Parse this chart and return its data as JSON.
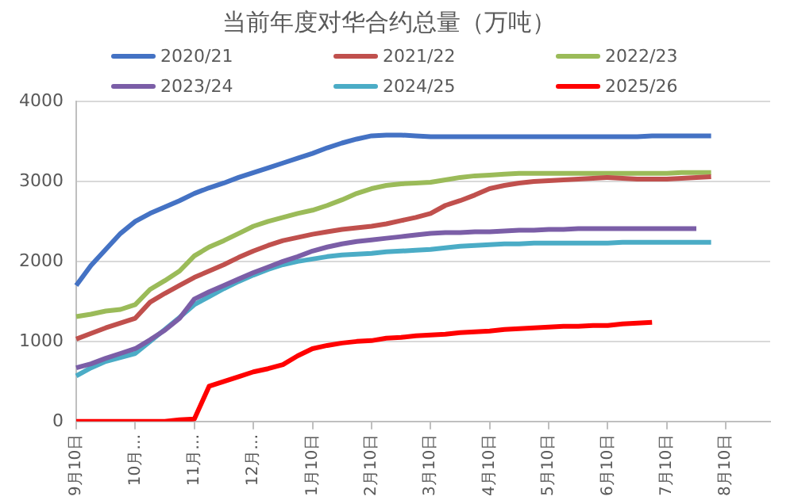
{
  "chart_data": {
    "type": "line",
    "title": "当前年度对华合约总量（万吨）",
    "categories": [
      "9月10日",
      null,
      null,
      null,
      "10月…",
      null,
      null,
      null,
      "11月…",
      null,
      null,
      null,
      "12月…",
      null,
      null,
      null,
      "1月10日",
      null,
      null,
      null,
      "2月10日",
      null,
      null,
      null,
      "3月10日",
      null,
      null,
      null,
      "4月10日",
      null,
      null,
      null,
      "5月10日",
      null,
      null,
      null,
      "6月10日",
      null,
      null,
      null,
      "7月10日",
      null,
      null,
      null,
      "8月10日",
      null,
      null,
      null
    ],
    "series": [
      {
        "name": "2020/21",
        "color": "#4472c4",
        "values": [
          1700,
          1950,
          2150,
          2350,
          2500,
          2600,
          2680,
          2760,
          2850,
          2920,
          2980,
          3050,
          3110,
          3170,
          3230,
          3290,
          3350,
          3420,
          3480,
          3530,
          3570,
          3580,
          3580,
          3570,
          3560,
          3560,
          3560,
          3560,
          3560,
          3560,
          3560,
          3560,
          3560,
          3560,
          3560,
          3560,
          3560,
          3560,
          3560,
          3570,
          3570,
          3570,
          3570,
          3570,
          null,
          null,
          null,
          null
        ]
      },
      {
        "name": "2021/22",
        "color": "#c0504d",
        "values": [
          1030,
          1100,
          1170,
          1230,
          1290,
          1490,
          1600,
          1700,
          1800,
          1880,
          1960,
          2050,
          2130,
          2200,
          2260,
          2300,
          2340,
          2370,
          2400,
          2420,
          2440,
          2470,
          2510,
          2550,
          2600,
          2700,
          2760,
          2830,
          2910,
          2950,
          2980,
          3000,
          3010,
          3020,
          3030,
          3040,
          3050,
          3040,
          3030,
          3030,
          3030,
          3040,
          3050,
          3060,
          null,
          null,
          null,
          null
        ]
      },
      {
        "name": "2022/23",
        "color": "#9bbb59",
        "values": [
          1310,
          1340,
          1380,
          1400,
          1460,
          1650,
          1760,
          1880,
          2070,
          2180,
          2260,
          2350,
          2440,
          2500,
          2550,
          2600,
          2640,
          2700,
          2770,
          2850,
          2910,
          2950,
          2970,
          2980,
          2990,
          3020,
          3050,
          3070,
          3080,
          3090,
          3100,
          3100,
          3100,
          3100,
          3100,
          3100,
          3100,
          3100,
          3100,
          3100,
          3100,
          3110,
          3110,
          3110,
          null,
          null,
          null,
          null
        ]
      },
      {
        "name": "2023/24",
        "color": "#7b5ea7",
        "values": [
          670,
          720,
          790,
          850,
          910,
          1020,
          1140,
          1290,
          1530,
          1620,
          1700,
          1780,
          1860,
          1930,
          2000,
          2060,
          2130,
          2180,
          2220,
          2250,
          2270,
          2290,
          2310,
          2330,
          2350,
          2360,
          2360,
          2370,
          2370,
          2380,
          2390,
          2390,
          2400,
          2400,
          2410,
          2410,
          2410,
          2410,
          2410,
          2410,
          2410,
          2410,
          2410,
          null,
          null,
          null,
          null,
          null
        ]
      },
      {
        "name": "2024/25",
        "color": "#4bacc6",
        "values": [
          570,
          670,
          750,
          800,
          850,
          1000,
          1150,
          1300,
          1460,
          1560,
          1660,
          1750,
          1830,
          1900,
          1960,
          2000,
          2030,
          2060,
          2080,
          2090,
          2100,
          2120,
          2130,
          2140,
          2150,
          2170,
          2190,
          2200,
          2210,
          2220,
          2220,
          2230,
          2230,
          2230,
          2230,
          2230,
          2230,
          2240,
          2240,
          2240,
          2240,
          2240,
          2240,
          2240,
          null,
          null,
          null,
          null
        ]
      },
      {
        "name": "2025/26",
        "color": "#ff0000",
        "values": [
          0,
          0,
          0,
          0,
          0,
          0,
          0,
          20,
          30,
          440,
          500,
          560,
          620,
          660,
          710,
          820,
          910,
          950,
          980,
          1000,
          1010,
          1040,
          1050,
          1070,
          1080,
          1090,
          1110,
          1120,
          1130,
          1150,
          1160,
          1170,
          1180,
          1190,
          1190,
          1200,
          1200,
          1220,
          1230,
          1240,
          null,
          null,
          null,
          null,
          null,
          null,
          null,
          null
        ]
      }
    ],
    "ylim": [
      0,
      4000
    ],
    "yticks": [
      0,
      1000,
      2000,
      3000,
      4000
    ],
    "grid": "y",
    "legend": "top",
    "marker": "none",
    "line_style": "solid"
  }
}
